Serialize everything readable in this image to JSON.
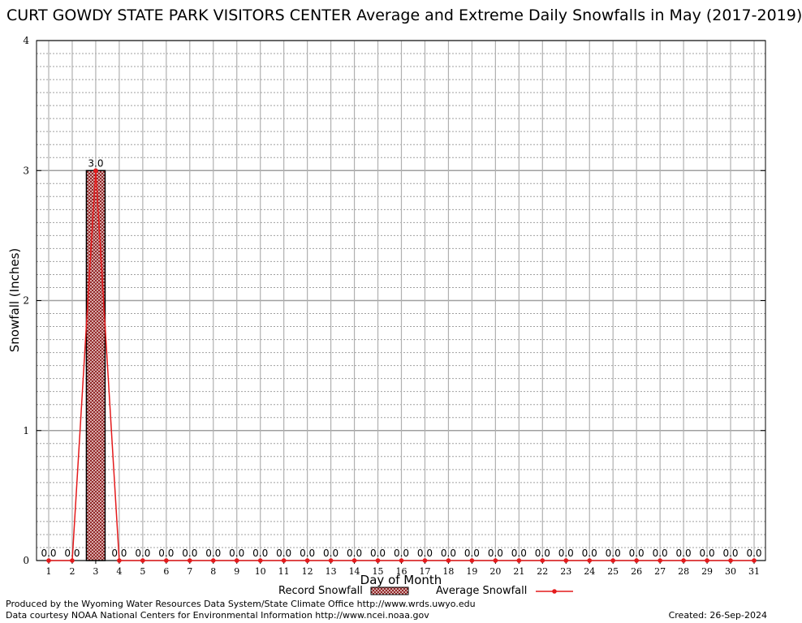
{
  "chart_data": {
    "type": "bar",
    "title": "CURT GOWDY STATE PARK VISITORS CENTER Average and Extreme Daily Snowfalls in May (2017-2019)",
    "xlabel": "Day of Month",
    "ylabel": "Snowfall (Inches)",
    "categories": [
      "1",
      "2",
      "3",
      "4",
      "5",
      "6",
      "7",
      "8",
      "9",
      "10",
      "11",
      "12",
      "13",
      "14",
      "15",
      "16",
      "17",
      "18",
      "19",
      "20",
      "21",
      "22",
      "23",
      "24",
      "25",
      "26",
      "27",
      "28",
      "29",
      "30",
      "31"
    ],
    "ylim": [
      0,
      4
    ],
    "yticks": [
      "0",
      "1",
      "2",
      "3",
      "4"
    ],
    "grid": true,
    "legend_position": "bottom",
    "series": [
      {
        "name": "Record Snowfall",
        "kind": "bar",
        "color": "#8b1a1a",
        "values": [
          0,
          0,
          3.0,
          0,
          0,
          0,
          0,
          0,
          0,
          0,
          0,
          0,
          0,
          0,
          0,
          0,
          0,
          0,
          0,
          0,
          0,
          0,
          0,
          0,
          0,
          0,
          0,
          0,
          0,
          0,
          0
        ],
        "labels": [
          "0.0",
          "0.0",
          "3.0",
          "0.0",
          "0.0",
          "0.0",
          "0.0",
          "0.0",
          "0.0",
          "0.0",
          "0.0",
          "0.0",
          "0.0",
          "0.0",
          "0.0",
          "0.0",
          "0.0",
          "0.0",
          "0.0",
          "0.0",
          "0.0",
          "0.0",
          "0.0",
          "0.0",
          "0.0",
          "0.0",
          "0.0",
          "0.0",
          "0.0",
          "0.0",
          "0.0"
        ]
      },
      {
        "name": "Average Snowfall",
        "kind": "line",
        "color": "#e41a1c",
        "values": [
          0,
          0,
          3.0,
          0,
          0,
          0,
          0,
          0,
          0,
          0,
          0,
          0,
          0,
          0,
          0,
          0,
          0,
          0,
          0,
          0,
          0,
          0,
          0,
          0,
          0,
          0,
          0,
          0,
          0,
          0,
          0
        ]
      }
    ]
  },
  "footer": {
    "produced_by": "Produced by the Wyoming Water Resources Data System/State Climate Office http://www.wrds.uwyo.edu",
    "data_courtesy": "Data courtesy NOAA National Centers for Environmental Information http://www.ncei.noaa.gov",
    "created": "Created:  26-Sep-2024"
  }
}
